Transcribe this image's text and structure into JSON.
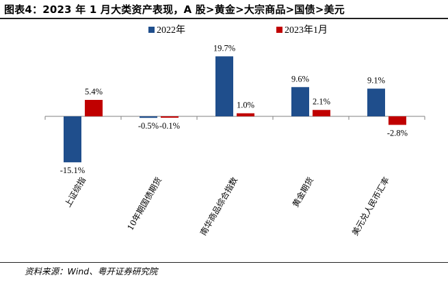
{
  "title": "图表4：2023 年 1 月大类资产表现，A 股>黄金>大宗商品>国债>美元",
  "source": "资料来源：Wind、粤开证券研究院",
  "colors": {
    "series_2022": "#1f4e8c",
    "series_2023": "#c00000",
    "axis": "#7f7f7f"
  },
  "chart_data": {
    "type": "bar",
    "categories": [
      "上证综指",
      "10年期国债期货",
      "南华商品综合指数",
      "黄金期货",
      "美元兑人民币汇率"
    ],
    "series": [
      {
        "name": "2022年",
        "values": [
          -15.1,
          -0.5,
          19.7,
          9.6,
          9.1
        ],
        "labels": [
          "-15.1%",
          "-0.5%",
          "19.7%",
          "9.6%",
          "9.1%"
        ]
      },
      {
        "name": "2023年1月",
        "values": [
          5.4,
          -0.1,
          1.0,
          2.1,
          -2.8
        ],
        "labels": [
          "5.4%",
          "-0.1%",
          "1.0%",
          "2.1%",
          "-2.8%"
        ]
      }
    ],
    "ylim": [
      -20,
      22
    ],
    "legend_position": "top",
    "grid": false
  }
}
